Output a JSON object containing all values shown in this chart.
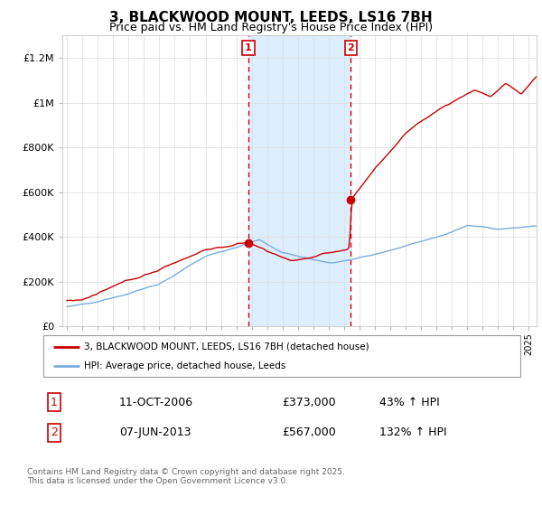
{
  "title": "3, BLACKWOOD MOUNT, LEEDS, LS16 7BH",
  "subtitle": "Price paid vs. HM Land Registry's House Price Index (HPI)",
  "ylim": [
    0,
    1300000
  ],
  "yticks": [
    0,
    200000,
    400000,
    600000,
    800000,
    1000000,
    1200000
  ],
  "sale1_year": 2006.78,
  "sale1_price": 373000,
  "sale2_year": 2013.44,
  "sale2_price": 567000,
  "red_line_color": "#cc0000",
  "blue_line_color": "#7aade0",
  "shade_color": "#ddeeff",
  "marker_box_color": "#cc0000",
  "legend_line1": "3, BLACKWOOD MOUNT, LEEDS, LS16 7BH (detached house)",
  "legend_line2": "HPI: Average price, detached house, Leeds",
  "footnote": "Contains HM Land Registry data © Crown copyright and database right 2025.\nThis data is licensed under the Open Government Licence v3.0.",
  "table_row1": [
    "1",
    "11-OCT-2006",
    "£373,000",
    "43% ↑ HPI"
  ],
  "table_row2": [
    "2",
    "07-JUN-2013",
    "£567,000",
    "132% ↑ HPI"
  ],
  "xlim_left": 1994.7,
  "xlim_right": 2025.5
}
